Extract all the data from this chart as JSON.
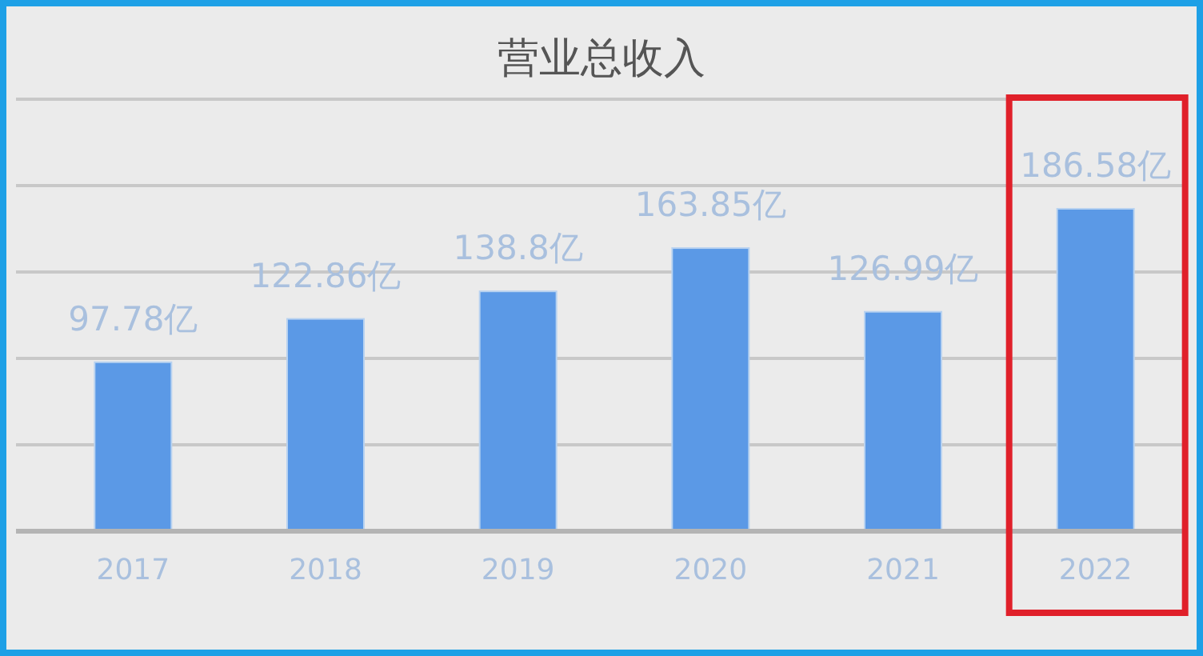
{
  "chart_data": {
    "type": "bar",
    "title": "营业总收入",
    "categories": [
      "2017",
      "2018",
      "2019",
      "2020",
      "2021",
      "2022"
    ],
    "values": [
      97.78,
      122.86,
      138.8,
      163.85,
      126.99,
      186.58
    ],
    "value_labels": [
      "97.78亿",
      "122.86亿",
      "138.8亿",
      "163.85亿",
      "126.99亿",
      "186.58亿"
    ],
    "color": "#5b99e6",
    "ylim": [
      0,
      250
    ],
    "yticks": [
      {
        "value": 0,
        "label": null
      },
      {
        "value": 50,
        "label": null
      },
      {
        "value": 100,
        "label": null
      },
      {
        "value": 150,
        "label": null
      },
      {
        "value": 200,
        "label": null
      },
      {
        "value": 250,
        "label": null
      }
    ],
    "grid": "y",
    "tick_labels": "x"
  }
}
